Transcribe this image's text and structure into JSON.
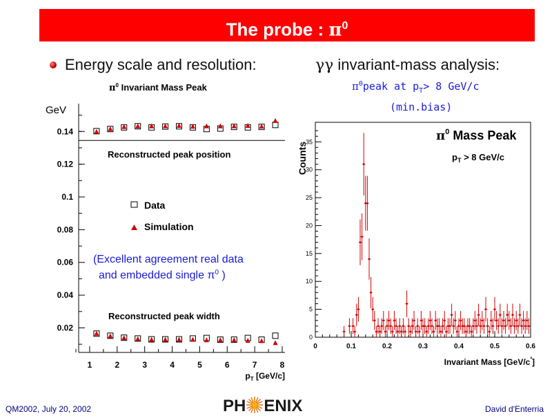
{
  "header": {
    "title": "The probe : ",
    "title_symbol": "π",
    "title_sup": "0"
  },
  "left_bullet": "Energy scale and resolution:",
  "right_heading": {
    "gg": "γγ",
    "text": " invariant-mass analysis:"
  },
  "right_sub": {
    "line1_pi": "π",
    "line1_sup": "0",
    "line1_text": "peak at p",
    "line1_sub": "T",
    "line1_tail": "> 8 GeV/c",
    "line2": "(min.bias)"
  },
  "footer": {
    "left": "QM2002, July 20, 2002",
    "right": "David d'Enterria",
    "logo_left": "PH",
    "logo_right": "ENIX"
  },
  "chart_data": [
    {
      "type": "scatter",
      "title": "π0 Invariant Mass Peak",
      "ylabel": "GeV",
      "xlabel": "pT [GeV/c]",
      "xlim": [
        0.6,
        8.1
      ],
      "ylim": [
        0.005,
        0.157
      ],
      "xticks": [
        1,
        2,
        3,
        4,
        5,
        6,
        7,
        8
      ],
      "yticks": [
        0.02,
        0.04,
        0.06,
        0.08,
        0.1,
        0.12,
        0.14
      ],
      "ytick_labels": [
        "0.02",
        "0.04",
        "0.06",
        "0.08",
        "0.1",
        "0.12",
        "0.14"
      ],
      "reference_line_y": 0.1345,
      "annotations": [
        "Reconstructed peak position",
        "Reconstructed peak width"
      ],
      "note": [
        "(Excellent agreement real data",
        "and embedded single π",
        "0",
        ")"
      ],
      "series": [
        {
          "name": "Data",
          "marker": "open-square",
          "color": "#000000",
          "x": [
            1.25,
            1.75,
            2.25,
            2.75,
            3.25,
            3.75,
            4.25,
            4.75,
            5.25,
            5.75,
            6.25,
            6.75,
            7.25,
            7.75,
            1.25,
            1.75,
            2.25,
            2.75,
            3.25,
            3.75,
            4.25,
            4.75,
            5.25,
            5.75,
            6.25,
            6.75,
            7.25,
            7.75
          ],
          "y": [
            0.1402,
            0.1415,
            0.1425,
            0.1432,
            0.1425,
            0.143,
            0.1432,
            0.1425,
            0.1415,
            0.1418,
            0.1428,
            0.1425,
            0.1428,
            0.144,
            0.0165,
            0.0152,
            0.014,
            0.0135,
            0.013,
            0.013,
            0.013,
            0.0135,
            0.0138,
            0.0128,
            0.0128,
            0.0138,
            0.0128,
            0.0152
          ]
        },
        {
          "name": "Simulation",
          "marker": "filled-triangle",
          "color": "#d00000",
          "x": [
            1.25,
            1.75,
            2.25,
            2.75,
            3.25,
            3.75,
            4.25,
            4.75,
            5.25,
            5.75,
            6.25,
            6.75,
            7.25,
            7.75,
            1.25,
            1.75,
            2.25,
            2.75,
            3.25,
            3.75,
            4.25,
            4.75,
            5.25,
            5.75,
            6.25,
            6.75,
            7.25,
            7.75
          ],
          "y": [
            0.1398,
            0.1415,
            0.1428,
            0.1432,
            0.1432,
            0.1432,
            0.1435,
            0.143,
            0.1432,
            0.1432,
            0.1432,
            0.1435,
            0.143,
            0.1465,
            0.0165,
            0.015,
            0.0138,
            0.0132,
            0.0128,
            0.0128,
            0.0128,
            0.0128,
            0.0125,
            0.0125,
            0.0125,
            0.0122,
            0.012,
            0.0108
          ]
        }
      ]
    },
    {
      "type": "scatter",
      "title": "π0 Mass Peak",
      "subtitle": "pT > 8 GeV/c",
      "xlabel": "Invariant Mass [GeV/c²]",
      "ylabel": "Counts",
      "xlim": [
        0,
        0.6
      ],
      "ylim": [
        0,
        38.5
      ],
      "xticks": [
        0,
        0.1,
        0.2,
        0.3,
        0.4,
        0.5,
        0.6
      ],
      "xtick_labels": [
        "0",
        "0.1",
        "0.2",
        "0.3",
        "0.4",
        "0.5",
        "0.6"
      ],
      "yticks": [
        0,
        5,
        10,
        15,
        20,
        25,
        30,
        35
      ],
      "ytick_labels": [
        "0",
        "5",
        "10",
        "15",
        "20",
        "25",
        "30",
        "35"
      ],
      "series": [
        {
          "name": "",
          "color": "#d00000",
          "points": [
            [
              0.08,
              1,
              1
            ],
            [
              0.095,
              2,
              1.4
            ],
            [
              0.105,
              2,
              1.4
            ],
            [
              0.11,
              1,
              1
            ],
            [
              0.115,
              4,
              2
            ],
            [
              0.12,
              5,
              2.2
            ],
            [
              0.125,
              17,
              4.1
            ],
            [
              0.13,
              18,
              4.2
            ],
            [
              0.135,
              31,
              5.6
            ],
            [
              0.14,
              24,
              4.9
            ],
            [
              0.145,
              24,
              4.9
            ],
            [
              0.15,
              14,
              3.7
            ],
            [
              0.155,
              8,
              2.8
            ],
            [
              0.16,
              5,
              2.2
            ],
            [
              0.165,
              3,
              1.7
            ],
            [
              0.17,
              1,
              1
            ],
            [
              0.175,
              2,
              1.4
            ],
            [
              0.18,
              1,
              1
            ],
            [
              0.185,
              2,
              1.4
            ],
            [
              0.19,
              3,
              1.7
            ],
            [
              0.195,
              1,
              1
            ],
            [
              0.2,
              2,
              1.4
            ],
            [
              0.205,
              3,
              1.7
            ],
            [
              0.21,
              2,
              1.4
            ],
            [
              0.215,
              1,
              1
            ],
            [
              0.22,
              3,
              1.7
            ],
            [
              0.225,
              2,
              1.4
            ],
            [
              0.23,
              1,
              1
            ],
            [
              0.235,
              2,
              1.4
            ],
            [
              0.24,
              1,
              1
            ],
            [
              0.245,
              2,
              1.4
            ],
            [
              0.25,
              1,
              1
            ],
            [
              0.255,
              6,
              2.4
            ],
            [
              0.26,
              2,
              1.4
            ],
            [
              0.265,
              1,
              1
            ],
            [
              0.27,
              2,
              1.4
            ],
            [
              0.275,
              3,
              1.7
            ],
            [
              0.28,
              1,
              1
            ],
            [
              0.285,
              2,
              1.4
            ],
            [
              0.29,
              1,
              1
            ],
            [
              0.295,
              3,
              1.7
            ],
            [
              0.3,
              2,
              1.4
            ],
            [
              0.305,
              2,
              1.4
            ],
            [
              0.31,
              1,
              1
            ],
            [
              0.315,
              2,
              1.4
            ],
            [
              0.32,
              3,
              1.7
            ],
            [
              0.325,
              2,
              1.4
            ],
            [
              0.33,
              1,
              1
            ],
            [
              0.335,
              3,
              1.7
            ],
            [
              0.34,
              2,
              1.4
            ],
            [
              0.345,
              2,
              1.4
            ],
            [
              0.35,
              1,
              1
            ],
            [
              0.355,
              2,
              1.4
            ],
            [
              0.36,
              3,
              1.7
            ],
            [
              0.365,
              1,
              1
            ],
            [
              0.37,
              2,
              1.4
            ],
            [
              0.375,
              2,
              1.4
            ],
            [
              0.38,
              4,
              2
            ],
            [
              0.385,
              2,
              1.4
            ],
            [
              0.39,
              3,
              1.7
            ],
            [
              0.395,
              1,
              1
            ],
            [
              0.4,
              2,
              1.4
            ],
            [
              0.405,
              3,
              1.7
            ],
            [
              0.41,
              2,
              1.4
            ],
            [
              0.415,
              2,
              1.4
            ],
            [
              0.42,
              1,
              1
            ],
            [
              0.425,
              2,
              1.4
            ],
            [
              0.43,
              2,
              1.4
            ],
            [
              0.435,
              1,
              1
            ],
            [
              0.44,
              2,
              1.4
            ],
            [
              0.445,
              3,
              1.7
            ],
            [
              0.45,
              2,
              1.4
            ],
            [
              0.455,
              4,
              2
            ],
            [
              0.46,
              2,
              1.4
            ],
            [
              0.465,
              3,
              1.7
            ],
            [
              0.47,
              2,
              1.4
            ],
            [
              0.475,
              5,
              2.2
            ],
            [
              0.48,
              2,
              1.4
            ],
            [
              0.485,
              1,
              1
            ],
            [
              0.49,
              3,
              1.7
            ],
            [
              0.495,
              2,
              1.4
            ],
            [
              0.5,
              5,
              2.2
            ],
            [
              0.505,
              3,
              1.7
            ],
            [
              0.51,
              2,
              1.4
            ],
            [
              0.515,
              4,
              2
            ],
            [
              0.52,
              2,
              1.4
            ],
            [
              0.525,
              3,
              1.7
            ],
            [
              0.53,
              2,
              1.4
            ],
            [
              0.535,
              4,
              2
            ],
            [
              0.54,
              3,
              1.7
            ],
            [
              0.545,
              2,
              1.4
            ],
            [
              0.55,
              4,
              2
            ],
            [
              0.555,
              2,
              1.4
            ],
            [
              0.56,
              3,
              1.7
            ],
            [
              0.565,
              2,
              1.4
            ],
            [
              0.57,
              4,
              2
            ],
            [
              0.575,
              2,
              1.4
            ],
            [
              0.58,
              3,
              1.7
            ],
            [
              0.585,
              2,
              1.4
            ],
            [
              0.59,
              3,
              1.7
            ],
            [
              0.595,
              2,
              1.4
            ]
          ]
        }
      ]
    }
  ]
}
